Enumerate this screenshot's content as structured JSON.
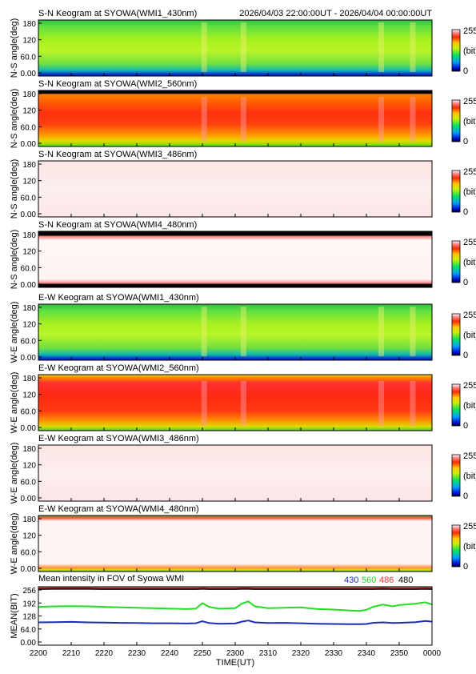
{
  "header": {
    "time_range": "2026/04/03 22:00:00UT - 2026/04/04 00:00:00UT"
  },
  "colorbar": {
    "max_label": "255",
    "unit_label": "(bit)",
    "min_label": "0"
  },
  "panels": [
    {
      "title": "S-N Keogram at SYOWA(WMI1_430nm)",
      "ylabel": "N-S angle(deg)",
      "yticks": [
        "180",
        "120",
        "60.0",
        "0.00"
      ],
      "style": "green"
    },
    {
      "title": "S-N Keogram at SYOWA(WMI2_560nm)",
      "ylabel": "N-S angle(deg)",
      "yticks": [
        "180",
        "120",
        "60.0",
        "0.00"
      ],
      "style": "red"
    },
    {
      "title": "S-N Keogram at SYOWA(WMI3_486nm)",
      "ylabel": "N-S angle(deg)",
      "yticks": [
        "180",
        "120",
        "60.0",
        "0.00"
      ],
      "style": "pink"
    },
    {
      "title": "S-N Keogram at SYOWA(WMI4_480nm)",
      "ylabel": "N-S angle(deg)",
      "yticks": [
        "180",
        "120",
        "60.0",
        "0.00"
      ],
      "style": "pink_edges"
    },
    {
      "title": "E-W Keogram at SYOWA(WMI1_430nm)",
      "ylabel": "W-E angle(deg)",
      "yticks": [
        "180",
        "120",
        "60.0",
        "0.00"
      ],
      "style": "green"
    },
    {
      "title": "E-W Keogram at SYOWA(WMI2_560nm)",
      "ylabel": "W-E angle(deg)",
      "yticks": [
        "180",
        "120",
        "60.0",
        "0.00"
      ],
      "style": "red"
    },
    {
      "title": "E-W Keogram at SYOWA(WMI3_486nm)",
      "ylabel": "W-E angle(deg)",
      "yticks": [
        "180",
        "120",
        "60.0",
        "0.00"
      ],
      "style": "pink"
    },
    {
      "title": "E-W Keogram at SYOWA(WMI4_480nm)",
      "ylabel": "W-E angle(deg)",
      "yticks": [
        "180",
        "120",
        "60.0",
        "0.00"
      ],
      "style": "pink_edges_green"
    }
  ],
  "colors": {
    "c430": "#1a2fb5",
    "c560": "#22dd22",
    "c486": "#ee3333",
    "c480": "#000000"
  },
  "chart_data": {
    "type": "line",
    "title": "Mean intensity in FOV of Syowa WMI",
    "ylabel": "MEAN(BIT)",
    "xlabel": "TIME(UT)",
    "ylim": [
      0,
      256
    ],
    "yticks": [
      "256",
      "192",
      "128",
      "64.0",
      "0.00"
    ],
    "xlim": [
      "2200",
      "0000"
    ],
    "x_tick_labels": [
      "2200",
      "2210",
      "2220",
      "2230",
      "2240",
      "2250",
      "2300",
      "2310",
      "2320",
      "2330",
      "2340",
      "2350",
      "0000"
    ],
    "x": [
      "2200",
      "2205",
      "2210",
      "2215",
      "2220",
      "2225",
      "2230",
      "2235",
      "2240",
      "2245",
      "2248",
      "2250",
      "2252",
      "2255",
      "2300",
      "2302",
      "2304",
      "2306",
      "2310",
      "2315",
      "2320",
      "2325",
      "2330",
      "2335",
      "2338",
      "2340",
      "2342",
      "2345",
      "2348",
      "2350",
      "2352",
      "2355",
      "2358",
      "0000"
    ],
    "series": [
      {
        "name": "430",
        "color": "#1a2fb5",
        "values": [
          100,
          101,
          102,
          100,
          99,
          98,
          97,
          96,
          96,
          95,
          96,
          105,
          97,
          94,
          95,
          103,
          108,
          100,
          97,
          98,
          96,
          94,
          93,
          92,
          92,
          93,
          98,
          100,
          97,
          98,
          99,
          101,
          106,
          103
        ]
      },
      {
        "name": "560",
        "color": "#22dd22",
        "values": [
          168,
          170,
          171,
          170,
          168,
          166,
          164,
          162,
          160,
          158,
          160,
          184,
          168,
          160,
          162,
          182,
          192,
          170,
          162,
          164,
          166,
          158,
          156,
          152,
          150,
          155,
          168,
          178,
          170,
          176,
          178,
          182,
          188,
          178
        ]
      },
      {
        "name": "486",
        "color": "#ee3333",
        "values": [
          254,
          254,
          254,
          254,
          254,
          254,
          254,
          254,
          254,
          254,
          254,
          254,
          254,
          254,
          254,
          254,
          254,
          254,
          254,
          254,
          254,
          254,
          254,
          254,
          254,
          254,
          254,
          254,
          254,
          254,
          254,
          254,
          254,
          254
        ]
      },
      {
        "name": "480",
        "color": "#000000",
        "values": [
          246,
          247,
          247,
          247,
          246,
          246,
          246,
          246,
          246,
          246,
          246,
          247,
          246,
          246,
          246,
          247,
          247,
          246,
          246,
          246,
          246,
          246,
          246,
          246,
          246,
          246,
          246,
          247,
          246,
          246,
          246,
          246,
          247,
          246
        ]
      }
    ]
  }
}
